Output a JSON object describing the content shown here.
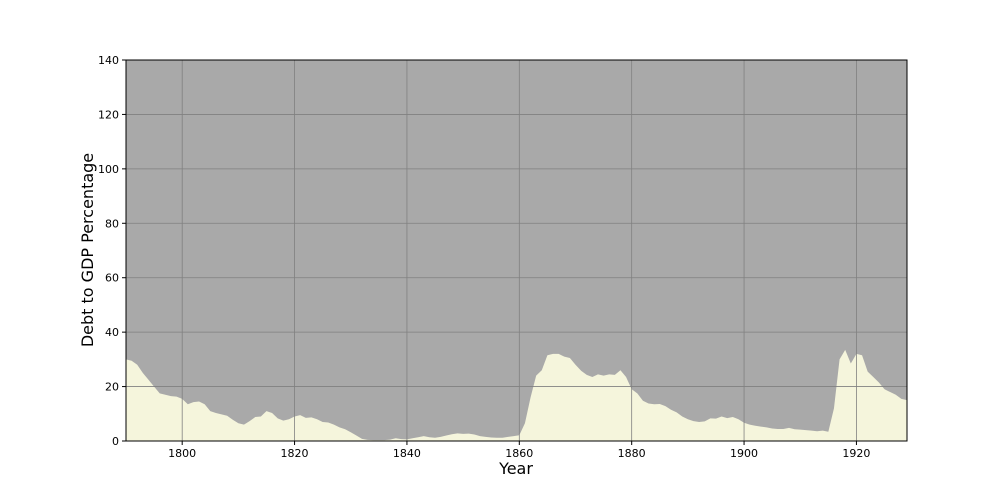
{
  "chart_data": {
    "type": "area",
    "x_label": "Year",
    "y_label": "Debt to GDP Percentage",
    "x": [
      1790,
      1791,
      1792,
      1793,
      1794,
      1795,
      1796,
      1797,
      1798,
      1799,
      1800,
      1801,
      1802,
      1803,
      1804,
      1805,
      1806,
      1807,
      1808,
      1809,
      1810,
      1811,
      1812,
      1813,
      1814,
      1815,
      1816,
      1817,
      1818,
      1819,
      1820,
      1821,
      1822,
      1823,
      1824,
      1825,
      1826,
      1827,
      1828,
      1829,
      1830,
      1831,
      1832,
      1833,
      1834,
      1835,
      1836,
      1837,
      1838,
      1839,
      1840,
      1841,
      1842,
      1843,
      1844,
      1845,
      1846,
      1847,
      1848,
      1849,
      1850,
      1851,
      1852,
      1853,
      1854,
      1855,
      1856,
      1857,
      1858,
      1859,
      1860,
      1861,
      1862,
      1863,
      1864,
      1865,
      1866,
      1867,
      1868,
      1869,
      1870,
      1871,
      1872,
      1873,
      1874,
      1875,
      1876,
      1877,
      1878,
      1879,
      1880,
      1881,
      1882,
      1883,
      1884,
      1885,
      1886,
      1887,
      1888,
      1889,
      1890,
      1891,
      1892,
      1893,
      1894,
      1895,
      1896,
      1897,
      1898,
      1899,
      1900,
      1901,
      1902,
      1903,
      1904,
      1905,
      1906,
      1907,
      1908,
      1909,
      1910,
      1911,
      1912,
      1913,
      1914,
      1915,
      1916,
      1917,
      1918,
      1919,
      1920,
      1921,
      1922,
      1923,
      1924,
      1925,
      1926,
      1927,
      1928,
      1929
    ],
    "values": [
      30,
      29.5,
      28,
      25,
      22.5,
      20,
      17.5,
      17,
      16.5,
      16.3,
      15.5,
      13.5,
      14.3,
      14.5,
      13.5,
      11,
      10.3,
      9.8,
      9.3,
      7.8,
      6.5,
      6,
      7.3,
      8.8,
      9,
      11,
      10.3,
      8.3,
      7.5,
      8,
      9,
      9.5,
      8.5,
      8.7,
      8,
      7,
      6.8,
      6,
      5,
      4.3,
      3.2,
      2,
      0.8,
      0.4,
      0.3,
      0.3,
      0.3,
      0.5,
      1,
      0.7,
      0.6,
      1,
      1.4,
      1.8,
      1.4,
      1.2,
      1.5,
      2,
      2.5,
      2.8,
      2.6,
      2.7,
      2.4,
      1.8,
      1.5,
      1.3,
      1.2,
      1.2,
      1.5,
      1.8,
      2.1,
      6.5,
      16,
      24,
      26,
      31.5,
      32,
      32,
      31,
      30.5,
      28,
      25.8,
      24.3,
      23.5,
      24.5,
      24,
      24.5,
      24.3,
      26,
      23.5,
      19,
      17.5,
      14.8,
      13.8,
      13.5,
      13.6,
      12.8,
      11.5,
      10.5,
      9,
      8,
      7.3,
      7,
      7.2,
      8.3,
      8.2,
      9,
      8.4,
      8.8,
      8,
      6.7,
      6,
      5.6,
      5.3,
      5,
      4.6,
      4.4,
      4.4,
      4.8,
      4.3,
      4.2,
      4,
      3.8,
      3.6,
      3.8,
      3.4,
      12,
      30,
      33.5,
      28.5,
      32,
      31.5,
      25.5,
      23.5,
      21.5,
      19,
      18,
      17,
      15.5,
      15
    ],
    "color": "#f5f5dc",
    "plot_background": "#a9a9a9",
    "grid": true,
    "grid_color": "#808080",
    "xlim": [
      1790,
      1929
    ],
    "xticks": [
      1800,
      1820,
      1840,
      1860,
      1880,
      1900,
      1920
    ],
    "ylim": [
      0,
      140
    ],
    "yticks": [
      0,
      20,
      40,
      60,
      80,
      100,
      120,
      140
    ]
  }
}
